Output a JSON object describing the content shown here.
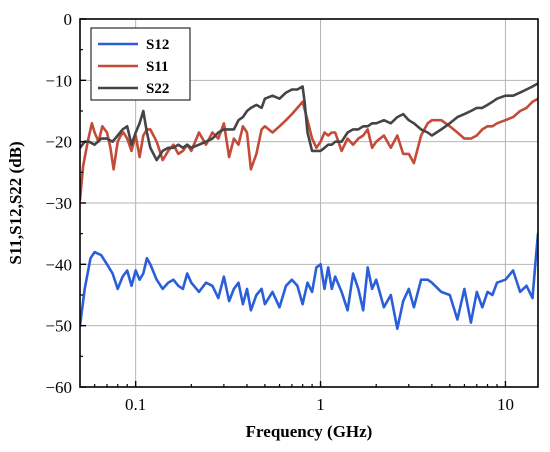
{
  "chart_data": {
    "type": "line",
    "xlabel": "Frequency (GHz)",
    "ylabel": "S11,S12,S22 (dB)",
    "x_scale": "log",
    "xlim": [
      0.05,
      15
    ],
    "ylim": [
      -60,
      0
    ],
    "x_ticks": [
      {
        "value": 0.1,
        "label": "0.1"
      },
      {
        "value": 1,
        "label": "1"
      },
      {
        "value": 10,
        "label": "10"
      }
    ],
    "y_ticks": [
      {
        "value": 0,
        "label": "0"
      },
      {
        "value": -10,
        "label": "−10"
      },
      {
        "value": -20,
        "label": "−20"
      },
      {
        "value": -30,
        "label": "−30"
      },
      {
        "value": -40,
        "label": "−40"
      },
      {
        "value": -50,
        "label": "−50"
      },
      {
        "value": -60,
        "label": "−60"
      }
    ],
    "grid": true,
    "legend_position": "top-left",
    "series": [
      {
        "name": "S12",
        "color": "#2b5fd9",
        "x": [
          0.05,
          0.053,
          0.057,
          0.06,
          0.065,
          0.07,
          0.075,
          0.08,
          0.085,
          0.09,
          0.095,
          0.1,
          0.105,
          0.11,
          0.115,
          0.12,
          0.13,
          0.14,
          0.15,
          0.16,
          0.17,
          0.18,
          0.19,
          0.2,
          0.22,
          0.24,
          0.26,
          0.28,
          0.3,
          0.32,
          0.34,
          0.36,
          0.38,
          0.4,
          0.42,
          0.45,
          0.48,
          0.5,
          0.55,
          0.6,
          0.65,
          0.7,
          0.75,
          0.8,
          0.85,
          0.9,
          0.95,
          1.0,
          1.05,
          1.1,
          1.15,
          1.2,
          1.3,
          1.4,
          1.5,
          1.6,
          1.7,
          1.8,
          1.9,
          2.0,
          2.2,
          2.4,
          2.6,
          2.8,
          3.0,
          3.2,
          3.5,
          3.8,
          4.0,
          4.5,
          5.0,
          5.5,
          6.0,
          6.5,
          7.0,
          7.5,
          8.0,
          8.5,
          9.0,
          10.0,
          11.0,
          12.0,
          13.0,
          14.0,
          14.5,
          15.0
        ],
        "y": [
          -50,
          -44,
          -39,
          -38,
          -38.5,
          -40,
          -41.5,
          -44,
          -42,
          -41,
          -43.5,
          -41,
          -42.5,
          -41.5,
          -39,
          -40,
          -42.5,
          -44,
          -43,
          -42.5,
          -43.5,
          -44,
          -41.5,
          -43,
          -44.5,
          -43,
          -43.5,
          -45.5,
          -42,
          -46,
          -44,
          -43,
          -46.5,
          -44,
          -47.5,
          -45,
          -44,
          -46.5,
          -44.5,
          -47,
          -43.5,
          -42.5,
          -43.5,
          -46.5,
          -43,
          -44.5,
          -40.5,
          -40,
          -44,
          -40.5,
          -44,
          -42,
          -44.5,
          -47.5,
          -41.5,
          -44,
          -47.5,
          -40.5,
          -44,
          -42.5,
          -47,
          -45,
          -50.5,
          -46,
          -44,
          -47,
          -42.5,
          -42.5,
          -43,
          -44.5,
          -45,
          -49,
          -44,
          -49.5,
          -44.5,
          -47,
          -44.5,
          -45,
          -43,
          -42.5,
          -41,
          -44.5,
          -43.5,
          -45.5,
          -40,
          -35
        ]
      },
      {
        "name": "S11",
        "color": "#c44b38",
        "x": [
          0.05,
          0.052,
          0.055,
          0.058,
          0.06,
          0.063,
          0.066,
          0.07,
          0.073,
          0.076,
          0.08,
          0.083,
          0.086,
          0.09,
          0.095,
          0.1,
          0.105,
          0.11,
          0.115,
          0.12,
          0.13,
          0.14,
          0.15,
          0.16,
          0.17,
          0.18,
          0.19,
          0.2,
          0.22,
          0.24,
          0.26,
          0.28,
          0.3,
          0.32,
          0.34,
          0.36,
          0.38,
          0.4,
          0.42,
          0.45,
          0.48,
          0.5,
          0.55,
          0.6,
          0.65,
          0.7,
          0.75,
          0.8,
          0.85,
          0.9,
          0.95,
          1.0,
          1.05,
          1.1,
          1.15,
          1.2,
          1.3,
          1.4,
          1.5,
          1.6,
          1.7,
          1.8,
          1.9,
          2.0,
          2.2,
          2.4,
          2.6,
          2.8,
          3.0,
          3.2,
          3.5,
          3.8,
          4.0,
          4.5,
          5.0,
          5.5,
          6.0,
          6.5,
          7.0,
          7.5,
          8.0,
          8.5,
          9.0,
          10.0,
          11.0,
          12.0,
          13.0,
          14.0,
          15.0
        ],
        "y": [
          -29.5,
          -24,
          -20,
          -17,
          -18.5,
          -20,
          -17.5,
          -18.5,
          -21,
          -24.5,
          -20,
          -19,
          -18.5,
          -19.5,
          -21.5,
          -19,
          -22.5,
          -19,
          -18,
          -18,
          -20,
          -23,
          -21.5,
          -20.5,
          -22,
          -21.5,
          -20.5,
          -21.5,
          -18.5,
          -20.5,
          -18.5,
          -19.5,
          -17,
          -22.5,
          -19.5,
          -20.5,
          -17.5,
          -18.5,
          -24.5,
          -22,
          -18,
          -17.5,
          -18.5,
          -17.5,
          -16.5,
          -15.5,
          -14.5,
          -13.5,
          -16.5,
          -19.5,
          -21,
          -20,
          -18.5,
          -19,
          -18.5,
          -18.5,
          -21.5,
          -19.5,
          -20.5,
          -19.5,
          -19,
          -18,
          -21,
          -20,
          -19,
          -21,
          -19,
          -22,
          -22,
          -23.5,
          -19,
          -17,
          -16.5,
          -16.5,
          -17.5,
          -18.5,
          -19.5,
          -19.5,
          -19,
          -18,
          -17.5,
          -17.5,
          -17,
          -16.5,
          -16,
          -15,
          -14.5,
          -13.5,
          -13
        ]
      },
      {
        "name": "S22",
        "color": "#454545",
        "x": [
          0.05,
          0.053,
          0.056,
          0.06,
          0.065,
          0.07,
          0.075,
          0.08,
          0.085,
          0.09,
          0.095,
          0.1,
          0.105,
          0.11,
          0.115,
          0.12,
          0.13,
          0.14,
          0.15,
          0.16,
          0.17,
          0.18,
          0.19,
          0.2,
          0.22,
          0.24,
          0.26,
          0.28,
          0.3,
          0.32,
          0.34,
          0.36,
          0.38,
          0.4,
          0.42,
          0.45,
          0.48,
          0.5,
          0.55,
          0.6,
          0.65,
          0.7,
          0.75,
          0.8,
          0.82,
          0.85,
          0.9,
          0.95,
          1.0,
          1.05,
          1.1,
          1.15,
          1.2,
          1.3,
          1.4,
          1.5,
          1.6,
          1.7,
          1.8,
          1.9,
          2.0,
          2.2,
          2.4,
          2.6,
          2.8,
          3.0,
          3.2,
          3.5,
          3.8,
          4.0,
          4.5,
          5.0,
          5.5,
          6.0,
          6.5,
          7.0,
          7.5,
          8.0,
          8.5,
          9.0,
          10.0,
          11.0,
          12.0,
          13.0,
          14.0,
          15.0
        ],
        "y": [
          -21,
          -20,
          -20,
          -20.5,
          -19.5,
          -19.5,
          -20,
          -19,
          -18,
          -17.5,
          -20.5,
          -18.5,
          -17,
          -15,
          -18.5,
          -21,
          -23,
          -21.5,
          -21,
          -21,
          -20.5,
          -21,
          -20.5,
          -21,
          -20.5,
          -20,
          -19.5,
          -18.5,
          -18,
          -18,
          -18,
          -16.5,
          -16,
          -15,
          -14.5,
          -14,
          -14.5,
          -13,
          -12.5,
          -13,
          -12,
          -11.5,
          -11.5,
          -11,
          -13.5,
          -18.5,
          -21.5,
          -21.5,
          -21.5,
          -21,
          -20.5,
          -20.5,
          -20,
          -20,
          -18.5,
          -18,
          -18,
          -17.5,
          -17.5,
          -17,
          -17,
          -16.5,
          -17,
          -16,
          -15.5,
          -16.5,
          -17,
          -18,
          -18.5,
          -19,
          -18,
          -17,
          -16,
          -15.5,
          -15,
          -14.5,
          -14.5,
          -14,
          -13.5,
          -13,
          -12.5,
          -12.5,
          -12,
          -11.5,
          -11,
          -10.5
        ]
      }
    ]
  }
}
